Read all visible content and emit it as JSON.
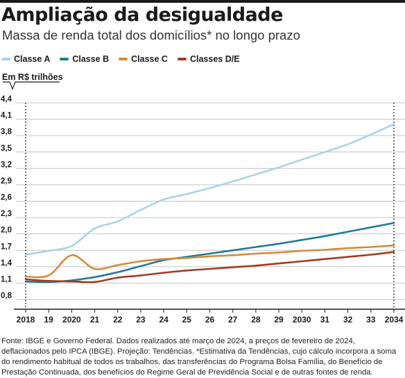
{
  "header": {
    "title": "Ampliação da desigualdade",
    "subtitle": "Massa de renda total dos domicílios* no longo prazo"
  },
  "legend": [
    {
      "label": "Classe A",
      "color": "#a9d3e6"
    },
    {
      "label": "Classe B",
      "color": "#1f7a99"
    },
    {
      "label": "Classe C",
      "color": "#d48a3a"
    },
    {
      "label": "Classes D/E",
      "color": "#a33a1e"
    }
  ],
  "unit_label": "Em R$ trilhões",
  "footnote": "Fonte: IBGE e Governo Federal. Dados realizados até março de 2024, a preços de fevereiro de 2024, deflacionados pelo IPCA (IBGE). Projeção: Tendências. *Estimativa da Tendências, cujo cálculo incorpora a soma do rendimento habitual de todos os trabalhos, das transferências do Programa Bolsa Família, do Benefício de Prestação Continuada, dos benefícios do Regime Geral de Previdência Social e de outras fontes de renda.",
  "chart_data": {
    "type": "line",
    "title": "Ampliação da desigualdade",
    "subtitle": "Massa de renda total dos domicílios* no longo prazo",
    "ylabel": "Em R$ trilhões",
    "x": [
      2018,
      2019,
      2020,
      2021,
      2022,
      2023,
      2024,
      2025,
      2026,
      2027,
      2028,
      2029,
      2030,
      2031,
      2032,
      2033,
      2034
    ],
    "x_tick_labels": [
      "2018",
      "19",
      "2020",
      "21",
      "22",
      "23",
      "24",
      "25",
      "26",
      "27",
      "28",
      "29",
      "2030",
      "31",
      "32",
      "33",
      "2034"
    ],
    "y_ticks": [
      "0,8",
      "1,1",
      "1,4",
      "1,7",
      "2,0",
      "2,3",
      "2,6",
      "2,9",
      "3,2",
      "3,5",
      "3,8",
      "4,1",
      "4,4"
    ],
    "ylim": [
      0.8,
      4.4
    ],
    "grid": true,
    "legend_position": "top-left",
    "series": [
      {
        "name": "Classe A",
        "color": "#a9d3e6",
        "values": [
          1.62,
          1.69,
          1.78,
          2.1,
          2.23,
          2.44,
          2.63,
          2.73,
          2.84,
          2.96,
          3.09,
          3.22,
          3.36,
          3.5,
          3.64,
          3.82,
          4.01
        ]
      },
      {
        "name": "Classe B",
        "color": "#1f7a99",
        "values": [
          1.13,
          1.12,
          1.15,
          1.21,
          1.3,
          1.41,
          1.52,
          1.58,
          1.64,
          1.7,
          1.76,
          1.82,
          1.89,
          1.96,
          2.04,
          2.12,
          2.2
        ]
      },
      {
        "name": "Classe C",
        "color": "#d48a3a",
        "values": [
          1.22,
          1.24,
          1.61,
          1.36,
          1.43,
          1.5,
          1.54,
          1.56,
          1.59,
          1.61,
          1.64,
          1.66,
          1.69,
          1.71,
          1.74,
          1.76,
          1.79
        ]
      },
      {
        "name": "Classes D/E",
        "color": "#a33a1e",
        "values": [
          1.17,
          1.14,
          1.13,
          1.12,
          1.2,
          1.24,
          1.29,
          1.33,
          1.36,
          1.39,
          1.42,
          1.46,
          1.5,
          1.54,
          1.58,
          1.62,
          1.67
        ]
      }
    ]
  }
}
